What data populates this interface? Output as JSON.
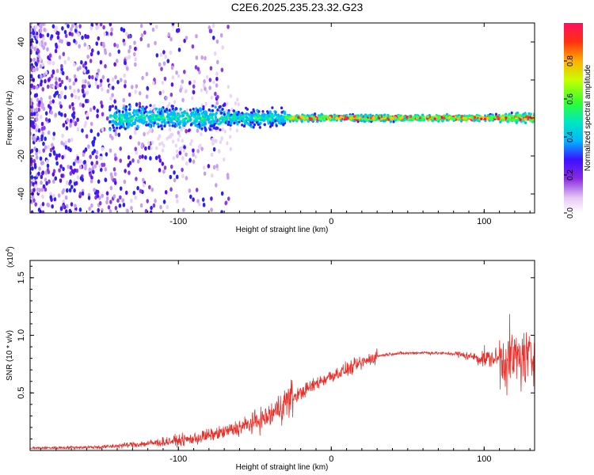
{
  "title": "C2E6.2025.235.23.32.G23",
  "spectrogram": {
    "type": "heatmap",
    "xlabel": "Height of straight line (km)",
    "ylabel": "Frequency (Hz)",
    "xlim": [
      -197,
      133
    ],
    "ylim": [
      -50,
      50
    ],
    "xticks": [
      -100,
      0,
      100
    ],
    "yticks": [
      -40,
      -20,
      0,
      20,
      40
    ],
    "colorbar": {
      "label": "Normalized spectral amplitude",
      "ticks": [
        "0.0",
        "0.2",
        "0.4",
        "0.6",
        "0.8"
      ],
      "range": [
        0,
        1
      ]
    }
  },
  "snr": {
    "type": "line",
    "xlabel": "Height of straight line (km)",
    "ylabel": "SNR (10 * v/v)",
    "multiplier": "(x10",
    "multiplier_exp": "4",
    "multiplier_close": ")",
    "xlim": [
      -197,
      133
    ],
    "ylim": [
      0,
      1.65
    ],
    "xticks": [
      -100,
      0,
      100
    ],
    "yticks": [
      "0.5",
      "1.0",
      "1.5"
    ],
    "ytick_values": [
      0.5,
      1.0,
      1.5
    ],
    "color": "#e8302b",
    "trend": {
      "x": [
        -197,
        -150,
        -120,
        -90,
        -70,
        -55,
        -40,
        -30,
        -20,
        -10,
        0,
        10,
        20,
        30,
        40,
        60,
        80,
        90,
        100,
        110,
        120,
        133
      ],
      "y": [
        0.02,
        0.03,
        0.06,
        0.1,
        0.16,
        0.22,
        0.3,
        0.42,
        0.5,
        0.58,
        0.65,
        0.7,
        0.76,
        0.82,
        0.84,
        0.85,
        0.84,
        0.82,
        0.8,
        0.8,
        0.8,
        0.8
      ]
    }
  }
}
